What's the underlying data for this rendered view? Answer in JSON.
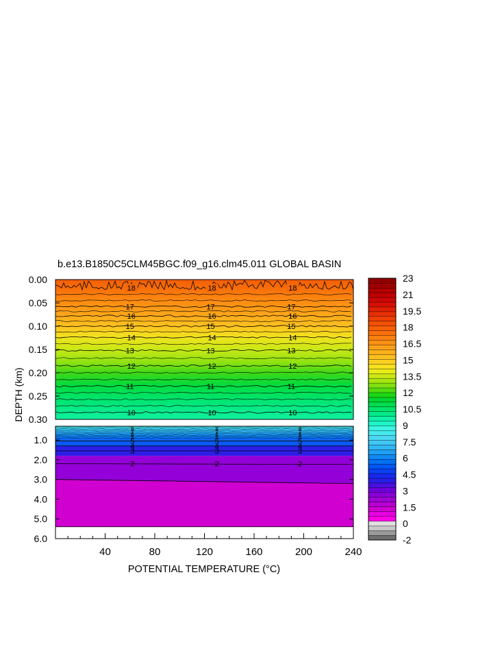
{
  "chart_data": {
    "type": "heatmap",
    "title": "b.e13.B1850C5CLM45BGC.f09_g16.clm45.011 GLOBAL BASIN",
    "xlabel": "POTENTIAL TEMPERATURE (°C)",
    "ylabel": "DEPTH (km)",
    "x_ticks": [
      "40",
      "80",
      "120",
      "160",
      "200",
      "240"
    ],
    "xlim": [
      0,
      240
    ],
    "upper_panel": {
      "y_ticks": [
        "0.00",
        "0.05",
        "0.10",
        "0.15",
        "0.20",
        "0.25",
        "0.30"
      ],
      "ylim": [
        0.0,
        0.3
      ],
      "contours": [
        {
          "level": 10,
          "depth": 0.285
        },
        {
          "level": 11,
          "depth": 0.229
        },
        {
          "level": 12,
          "depth": 0.185
        },
        {
          "level": 13,
          "depth": 0.152
        },
        {
          "level": 14,
          "depth": 0.124
        },
        {
          "level": 15,
          "depth": 0.1
        },
        {
          "level": 16,
          "depth": 0.078
        },
        {
          "level": 17,
          "depth": 0.058
        },
        {
          "level": 18,
          "depth": 0.018
        }
      ],
      "label_x": [
        60,
        125,
        190
      ]
    },
    "lower_panel": {
      "y_ticks": [
        "1.0",
        "2.0",
        "3.0",
        "4.0",
        "5.0",
        "6.0"
      ],
      "ylim": [
        0.3,
        6.0
      ],
      "contours": [
        {
          "level": 2,
          "depth": 2.2
        },
        {
          "level": 3,
          "depth": 1.55
        },
        {
          "level": 4,
          "depth": 1.3
        },
        {
          "level": 5,
          "depth": 1.05
        }
      ],
      "label_x": [
        62,
        130,
        197
      ],
      "bands": [
        {
          "value": 0.5,
          "top": 3.0,
          "bottom": 5.4
        },
        {
          "value": 2.0,
          "top": 1.8,
          "bottom": 3.0
        },
        {
          "value": 3.0,
          "top": 1.3,
          "bottom": 1.8
        },
        {
          "value": 4.0,
          "top": 1.0,
          "bottom": 1.3
        }
      ],
      "missing_below": 5.4
    },
    "colorbar": {
      "labels": [
        "23",
        "21",
        "19.5",
        "18",
        "16.5",
        "15",
        "13.5",
        "12",
        "10.5",
        "9",
        "7.5",
        "6",
        "4.5",
        "3",
        "1.5",
        "0",
        "-2"
      ],
      "min": -2,
      "max": 23,
      "colors": [
        "#6e6e6e",
        "#9a9a9a",
        "#c8c8c8",
        "#e0e0e0",
        "#ff00e6",
        "#e600e0",
        "#d000d2",
        "#b800d0",
        "#a000d4",
        "#8a00d8",
        "#7000dc",
        "#4a10e0",
        "#2a1ee6",
        "#1828ec",
        "#0a40f2",
        "#0058f4",
        "#0070f4",
        "#1088f4",
        "#20a0f4",
        "#30b8f4",
        "#40c8f4",
        "#4ad8f2",
        "#46e8ee",
        "#3cf4e4",
        "#20f4c8",
        "#10f0a8",
        "#00ea88",
        "#00e46a",
        "#00dc4c",
        "#00d430",
        "#1cd814",
        "#50dc10",
        "#80e010",
        "#a8e610",
        "#cce814",
        "#eaec18",
        "#f8e020",
        "#fcd020",
        "#fcc020",
        "#fcb01c",
        "#fca018",
        "#fc9014",
        "#fc8010",
        "#fa700c",
        "#f86008",
        "#f45004",
        "#ee4004",
        "#e83004",
        "#e02004",
        "#d81004",
        "#cc0804",
        "#c00000",
        "#b00000",
        "#a00000",
        "#900000"
      ]
    }
  }
}
